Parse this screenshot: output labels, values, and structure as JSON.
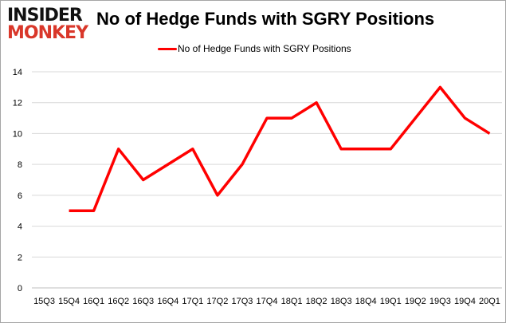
{
  "logo": {
    "line1": "INSIDER",
    "line2": "MONKEY"
  },
  "chart_data": {
    "type": "line",
    "title": "No of Hedge Funds with SGRY Positions",
    "xlabel": "",
    "ylabel": "",
    "categories": [
      "15Q3",
      "15Q4",
      "16Q1",
      "16Q2",
      "16Q3",
      "16Q4",
      "17Q1",
      "17Q2",
      "17Q3",
      "17Q4",
      "18Q1",
      "18Q2",
      "18Q3",
      "18Q4",
      "19Q1",
      "19Q2",
      "19Q3",
      "19Q4",
      "20Q1"
    ],
    "series": [
      {
        "name": "No of Hedge Funds with SGRY Positions",
        "color": "#ff0000",
        "values": [
          null,
          5,
          5,
          9,
          7,
          8,
          9,
          6,
          8,
          11,
          11,
          12,
          9,
          9,
          9,
          11,
          13,
          11,
          10
        ]
      }
    ],
    "ylim": [
      0,
      14
    ],
    "yticks": [
      0,
      2,
      4,
      6,
      8,
      10,
      12,
      14
    ],
    "grid": true,
    "legend": "top-center"
  }
}
